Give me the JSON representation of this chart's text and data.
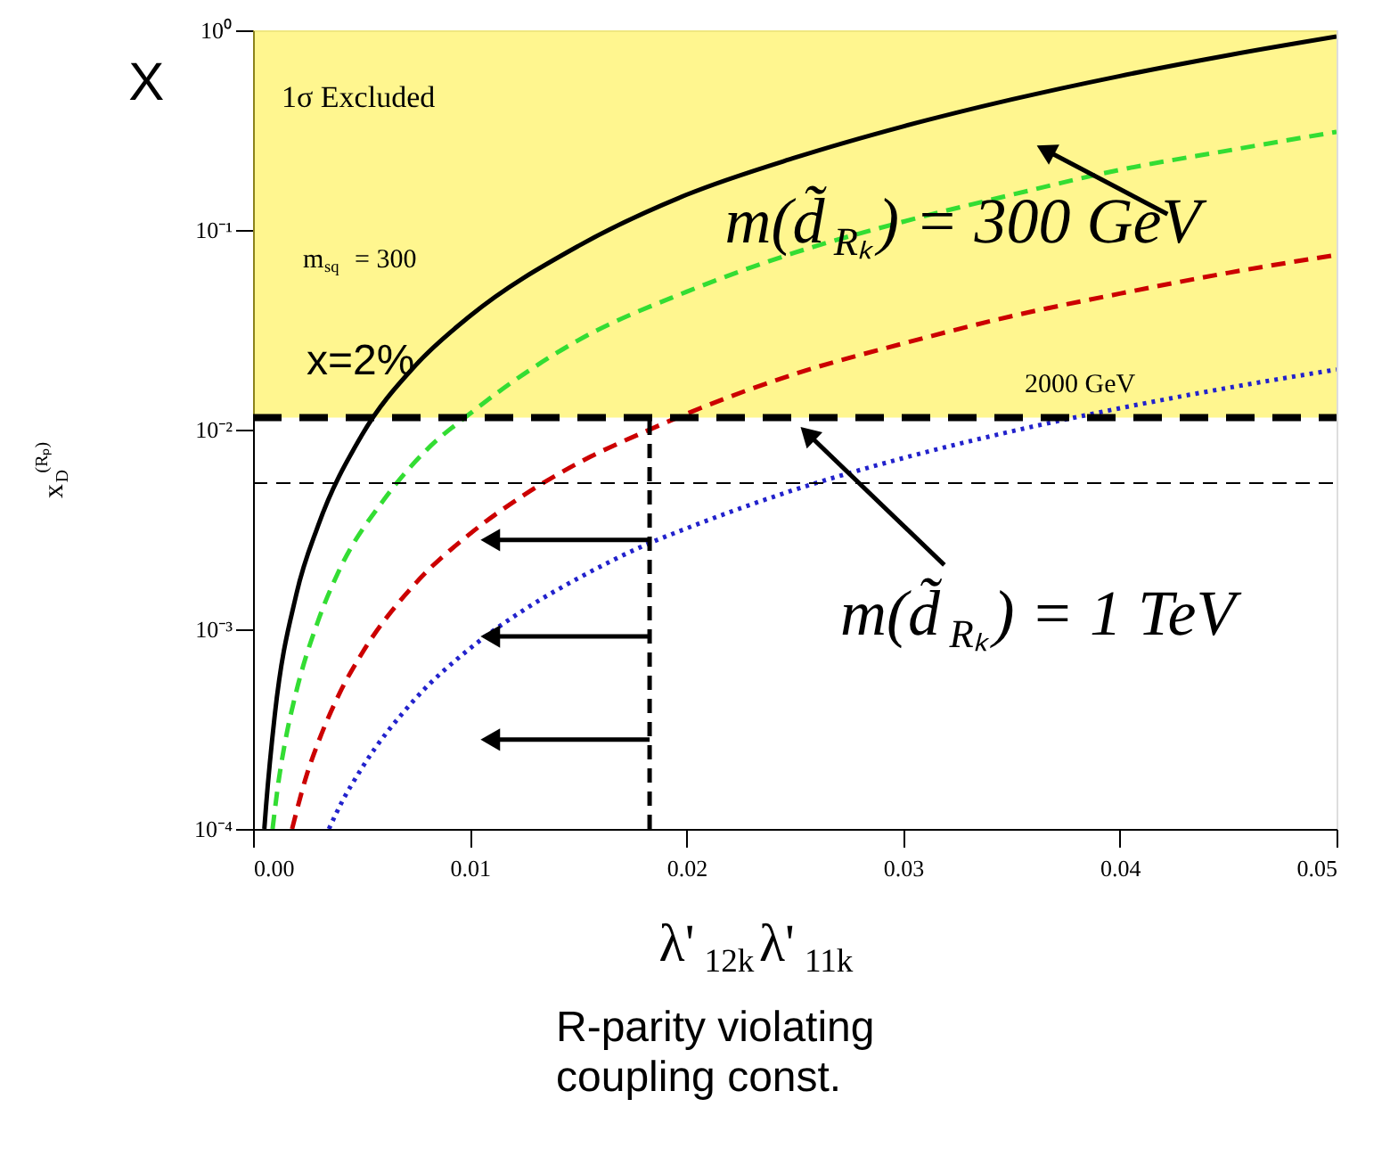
{
  "chart_data": {
    "type": "line",
    "xlabel": "λ'$_{12k}$λ'$_{11k}$",
    "ylabel": "x$_{D}$$^{(Rₚ)}$",
    "xlim": [
      0,
      0.05
    ],
    "xticks": [
      {
        "value": 0,
        "label": "0.00"
      },
      {
        "value": 0.01,
        "label": "0.01"
      },
      {
        "value": 0.02,
        "label": "0.02"
      },
      {
        "value": 0.03,
        "label": "0.03"
      },
      {
        "value": 0.04,
        "label": "0.04"
      },
      {
        "value": 0.05,
        "label": "0.05"
      }
    ],
    "ylim": [
      0.0001,
      1
    ],
    "yticks": [
      {
        "value": 0.0001,
        "label": "10⁻⁴"
      },
      {
        "value": 0.001,
        "label": "10⁻³"
      },
      {
        "value": 0.01,
        "label": "10⁻²"
      },
      {
        "value": 0.1,
        "label": "10⁻¹"
      },
      {
        "value": 1,
        "label": "10⁰"
      }
    ],
    "log": "y",
    "grid": false,
    "series": [
      {
        "color": "#000000",
        "line_style": "solid",
        "x": [
          0.00052,
          0.0006,
          0.001,
          0.002,
          0.003,
          0.005,
          0.0075,
          0.01,
          0.015,
          0.02,
          0.025,
          0.03,
          0.035,
          0.04,
          0.045,
          0.05
        ],
        "values": [
          0.0001,
          0.00013,
          0.00037,
          0.0015,
          0.0033,
          0.0093,
          0.021,
          0.037,
          0.083,
          0.15,
          0.23,
          0.33,
          0.45,
          0.59,
          0.75,
          0.93
        ]
      },
      {
        "color": "#33dd33",
        "line_style": "dashed",
        "x": [
          0.0009,
          0.0012,
          0.0015,
          0.002,
          0.003,
          0.004,
          0.006,
          0.008,
          0.01,
          0.015,
          0.02,
          0.025,
          0.03,
          0.035,
          0.04,
          0.045,
          0.05
        ],
        "values": [
          0.0001,
          0.00018,
          0.00028,
          0.00049,
          0.0011,
          0.002,
          0.0044,
          0.0079,
          0.012,
          0.028,
          0.049,
          0.077,
          0.11,
          0.15,
          0.2,
          0.25,
          0.31
        ]
      },
      {
        "color": "#cc0000",
        "line_style": "dashed",
        "x": [
          0.0018,
          0.0025,
          0.003,
          0.004,
          0.005,
          0.0075,
          0.01,
          0.0125,
          0.015,
          0.0183,
          0.02,
          0.025,
          0.03,
          0.035,
          0.04,
          0.045,
          0.05
        ],
        "values": [
          0.0001,
          0.00019,
          0.00027,
          0.00048,
          0.00075,
          0.0017,
          0.003,
          0.0047,
          0.0068,
          0.01,
          0.012,
          0.019,
          0.027,
          0.037,
          0.048,
          0.061,
          0.075
        ]
      },
      {
        "color": "#2222cc",
        "line_style": "dotted",
        "x": [
          0.0035,
          0.004,
          0.005,
          0.0075,
          0.01,
          0.0125,
          0.015,
          0.0183,
          0.02,
          0.025,
          0.03,
          0.035,
          0.04,
          0.045,
          0.05
        ],
        "values": [
          0.0001,
          0.00013,
          0.0002,
          0.00045,
          0.0008,
          0.00125,
          0.0018,
          0.0027,
          0.0032,
          0.005,
          0.0072,
          0.0098,
          0.0128,
          0.0162,
          0.02
        ]
      },
      {
        "color": "#000000",
        "line_style": "dashed",
        "x": [
          0.0183,
          0.0183
        ],
        "values": [
          0.0001,
          0.0115
        ]
      }
    ],
    "ref_lines": [
      {
        "axis": "y",
        "value": 0.0115,
        "line_style": "dashed",
        "color": "#000000"
      },
      {
        "axis": "y",
        "value": 0.0054,
        "line_style": "dashed",
        "color": "#000000"
      }
    ],
    "bands": [
      {
        "axis": "y",
        "from": 0.0115,
        "to": 1,
        "label": "1σ Excluded",
        "color": "#ffee33"
      }
    ],
    "annotations": [
      "X",
      "x=2%",
      "m$_{sq}$ = 300",
      "m(d̃$_{Rₖ}$) = 300 GeV",
      "2000 GeV",
      "m(d̃$_{Rₖ}$) = 1 TeV",
      "R-parity violating\ncoupling const."
    ]
  }
}
